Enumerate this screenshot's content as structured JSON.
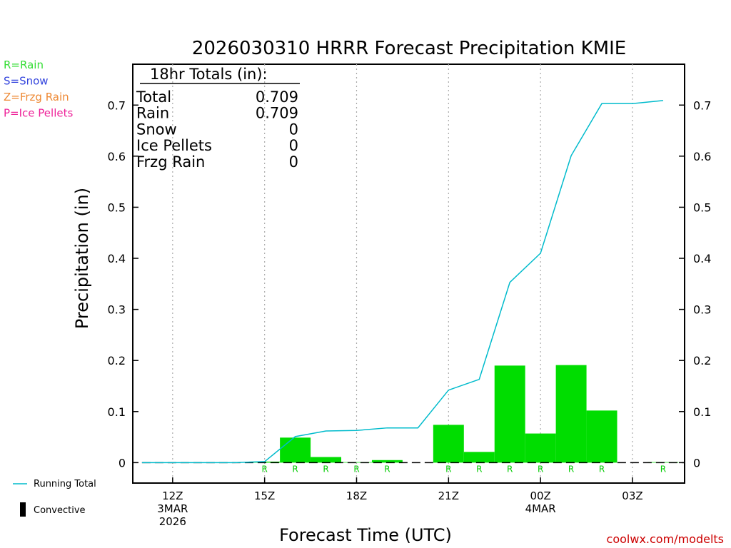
{
  "chart_data": {
    "type": "bar",
    "title": "2026030310 HRRR Forecast Precipitation KMIE",
    "xlabel": "Forecast Time (UTC)",
    "ylabel": "Precipitation (in)",
    "ylim": [
      -0.04,
      0.78
    ],
    "yticks": [
      0,
      0.1,
      0.2,
      0.3,
      0.4,
      0.5,
      0.6,
      0.7
    ],
    "xlim": [
      10.7,
      28.7
    ],
    "x_tick_labels": [
      {
        "x": 12,
        "lines": [
          "12Z",
          "3MAR",
          "2026"
        ]
      },
      {
        "x": 15,
        "lines": [
          "15Z"
        ]
      },
      {
        "x": 18,
        "lines": [
          "18Z"
        ]
      },
      {
        "x": 21,
        "lines": [
          "21Z"
        ]
      },
      {
        "x": 24,
        "lines": [
          "00Z",
          "4MAR"
        ]
      },
      {
        "x": 27,
        "lines": [
          "03Z"
        ]
      }
    ],
    "hourly_bars": {
      "name": "Rain",
      "color": "#00dd00",
      "hours": [
        11,
        12,
        13,
        14,
        15,
        16,
        17,
        18,
        19,
        20,
        21,
        22,
        23,
        24,
        25,
        26,
        27,
        28
      ],
      "values": [
        0,
        0,
        0,
        0,
        0.002,
        0.049,
        0.011,
        0.001,
        0.005,
        0,
        0.074,
        0.021,
        0.19,
        0.057,
        0.191,
        0.102,
        0,
        0.001
      ]
    },
    "running_total": {
      "name": "Running Total",
      "color": "#00bbcc",
      "x": [
        11,
        12,
        13,
        14,
        15,
        16,
        17,
        18,
        19,
        20,
        21,
        22,
        23,
        24,
        25,
        26,
        27,
        28
      ],
      "y": [
        0,
        0,
        0,
        0,
        0.002,
        0.051,
        0.062,
        0.063,
        0.068,
        0.068,
        0.142,
        0.163,
        0.353,
        0.41,
        0.601,
        0.703,
        0.703,
        0.709
      ]
    },
    "ptype_markers": {
      "hours": [
        15,
        16,
        17,
        18,
        19,
        21,
        22,
        23,
        24,
        25,
        26,
        28
      ],
      "label": "R"
    },
    "grid_dotted_x": [
      12,
      15,
      18,
      21,
      24,
      27
    ]
  },
  "totals_box": {
    "header": "18hr Totals (in):",
    "rows": [
      {
        "label": "Total",
        "value": "0.709"
      },
      {
        "label": "Rain",
        "value": "0.709"
      },
      {
        "label": "Snow",
        "value": "0"
      },
      {
        "label": "Ice Pellets",
        "value": "0"
      },
      {
        "label": "Frzg Rain",
        "value": "0"
      }
    ]
  },
  "ptype_legend": [
    {
      "text": "R=Rain",
      "color": "#33dd33"
    },
    {
      "text": "S=Snow",
      "color": "#3344dd"
    },
    {
      "text": "Z=Frzg Rain",
      "color": "#ee8833"
    },
    {
      "text": "P=Ice Pellets",
      "color": "#ee2299"
    }
  ],
  "bottom_legend": {
    "running_total": "Running Total",
    "convective": "Convective"
  },
  "credit": "coolwx.com/modelts"
}
